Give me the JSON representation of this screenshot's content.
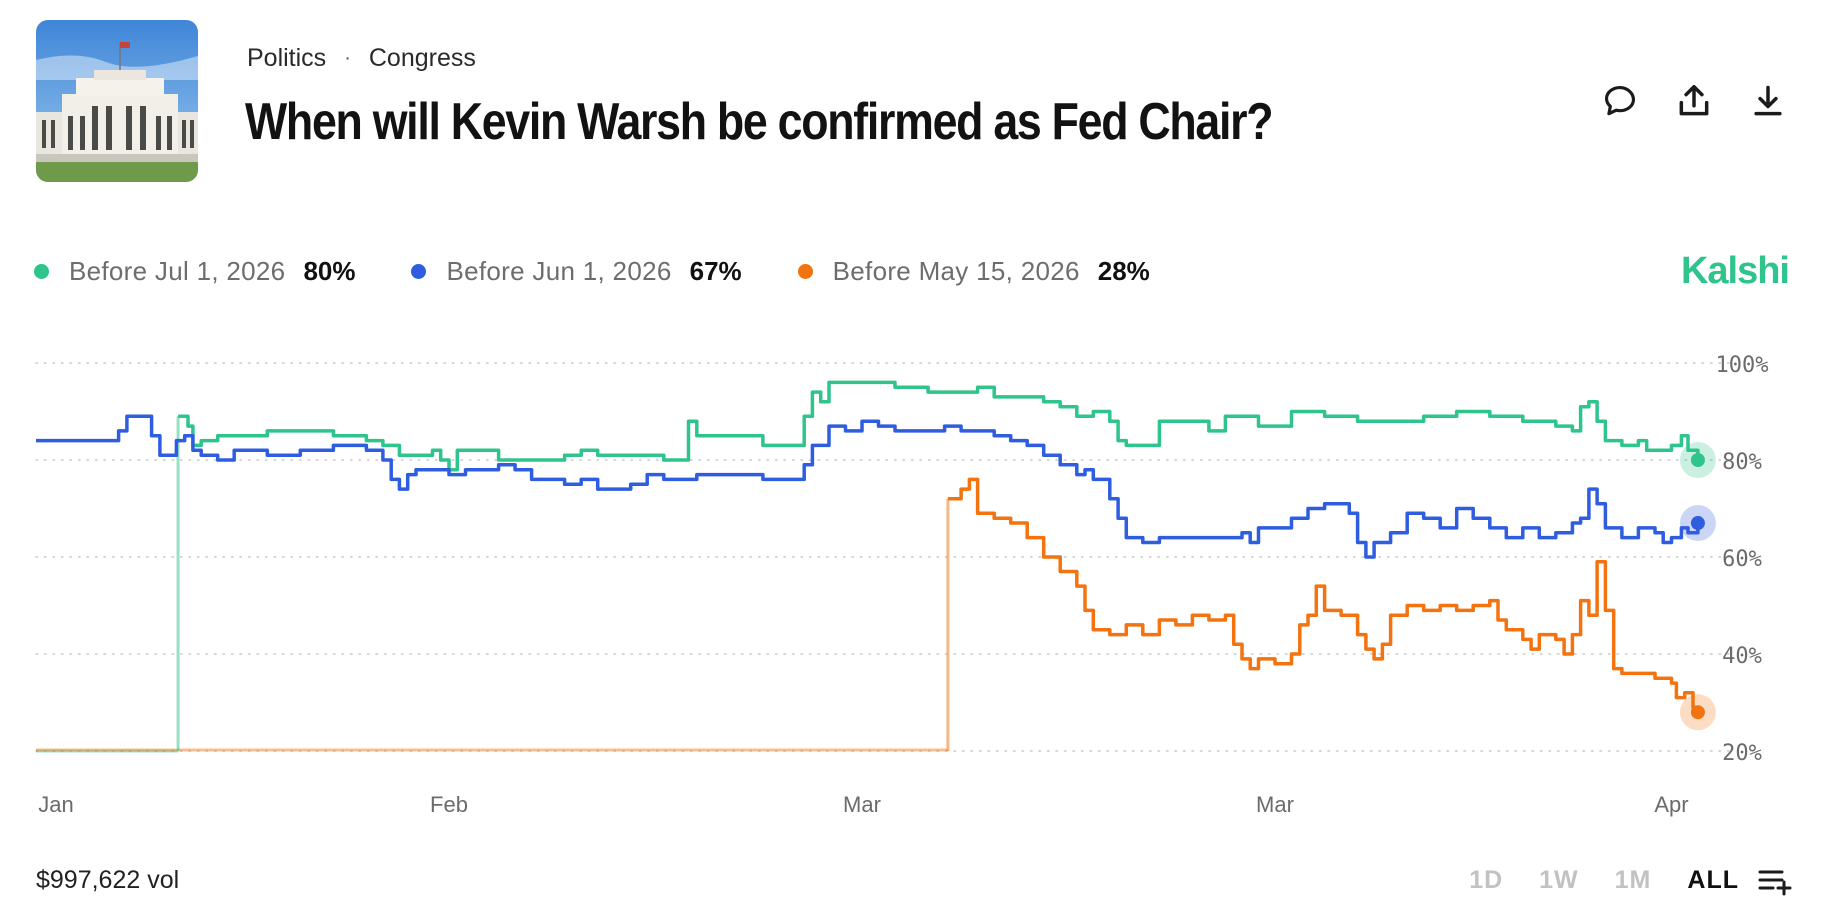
{
  "header": {
    "breadcrumb": [
      "Politics",
      "Congress"
    ],
    "separator": "·",
    "title": "When will Kevin Warsh be confirmed as Fed Chair?",
    "thumbnail": "federal-reserve-building-image"
  },
  "actions": [
    {
      "name": "comment-button",
      "icon": "comment-icon"
    },
    {
      "name": "share-button",
      "icon": "share-icon"
    },
    {
      "name": "download-button",
      "icon": "download-icon"
    }
  ],
  "brand": "Kalshi",
  "footer": {
    "volume": "$997,622 vol",
    "ranges": [
      "1D",
      "1W",
      "1M",
      "ALL"
    ],
    "active_range": "ALL",
    "list_icon": "add-list-icon"
  },
  "colors": {
    "green": "#2ec48c",
    "blue": "#2f5de0",
    "orange": "#f2730f",
    "brand": "#2ec48c"
  },
  "chart_data": {
    "type": "line",
    "title": "When will Kevin Warsh be confirmed as Fed Chair?",
    "xlabel": "",
    "ylabel": "",
    "x_range": [
      0,
      100
    ],
    "ylim": [
      20,
      100
    ],
    "y_ticks": [
      100,
      80,
      60,
      40,
      20
    ],
    "y_tick_labels": [
      "100%",
      "80%",
      "60%",
      "40%",
      "20%"
    ],
    "x_ticks": [
      {
        "label": "Jan",
        "pos": 0
      },
      {
        "label": "Feb",
        "pos": 25
      },
      {
        "label": "Mar",
        "pos": 50
      },
      {
        "label": "Mar",
        "pos": 75
      },
      {
        "label": "Apr",
        "pos": 99
      }
    ],
    "grid": true,
    "legend_position": "top-left",
    "series": [
      {
        "name": "Before Jul 1, 2026",
        "current": "80%",
        "color": "green",
        "start_x": 8.6,
        "points": [
          [
            8.6,
            20
          ],
          [
            8.6,
            89
          ],
          [
            9.2,
            87
          ],
          [
            9.5,
            83
          ],
          [
            10,
            84
          ],
          [
            11,
            85
          ],
          [
            12,
            85
          ],
          [
            14,
            86
          ],
          [
            16,
            86
          ],
          [
            18,
            85
          ],
          [
            20,
            84
          ],
          [
            21,
            83
          ],
          [
            22,
            81
          ],
          [
            23,
            81
          ],
          [
            24,
            82
          ],
          [
            24.5,
            80
          ],
          [
            25,
            78
          ],
          [
            25.5,
            82
          ],
          [
            27,
            82
          ],
          [
            28,
            80
          ],
          [
            30,
            80
          ],
          [
            32,
            81
          ],
          [
            33,
            82
          ],
          [
            34,
            81
          ],
          [
            36,
            81
          ],
          [
            38,
            80
          ],
          [
            39,
            80
          ],
          [
            39.5,
            88
          ],
          [
            40,
            85
          ],
          [
            42,
            85
          ],
          [
            44,
            83
          ],
          [
            46,
            83
          ],
          [
            46.5,
            89
          ],
          [
            47,
            94
          ],
          [
            47.5,
            92
          ],
          [
            48,
            96
          ],
          [
            50,
            96
          ],
          [
            52,
            95
          ],
          [
            54,
            94
          ],
          [
            56,
            94
          ],
          [
            57,
            95
          ],
          [
            58,
            93
          ],
          [
            60,
            93
          ],
          [
            61,
            92
          ],
          [
            62,
            91
          ],
          [
            63,
            89
          ],
          [
            64,
            90
          ],
          [
            65,
            88
          ],
          [
            65.5,
            84
          ],
          [
            66,
            83
          ],
          [
            67,
            83
          ],
          [
            68,
            88
          ],
          [
            70,
            88
          ],
          [
            71,
            86
          ],
          [
            72,
            89
          ],
          [
            74,
            87
          ],
          [
            76,
            90
          ],
          [
            78,
            89
          ],
          [
            80,
            88
          ],
          [
            82,
            88
          ],
          [
            84,
            89
          ],
          [
            86,
            90
          ],
          [
            88,
            89
          ],
          [
            90,
            88
          ],
          [
            92,
            87
          ],
          [
            93,
            86
          ],
          [
            93.5,
            91
          ],
          [
            94,
            92
          ],
          [
            94.5,
            88
          ],
          [
            95,
            84
          ],
          [
            96,
            83
          ],
          [
            97,
            84
          ],
          [
            97.5,
            82
          ],
          [
            98,
            82
          ],
          [
            99,
            83
          ],
          [
            99.6,
            85
          ],
          [
            100,
            82
          ],
          [
            100.6,
            80
          ]
        ]
      },
      {
        "name": "Before Jun 1, 2026",
        "current": "67%",
        "color": "blue",
        "start_x": 0,
        "points": [
          [
            0,
            84
          ],
          [
            4,
            84
          ],
          [
            5,
            86
          ],
          [
            5.5,
            89
          ],
          [
            6.5,
            89
          ],
          [
            7,
            85
          ],
          [
            7.5,
            81
          ],
          [
            8,
            81
          ],
          [
            8.5,
            84
          ],
          [
            9,
            85
          ],
          [
            9.5,
            82
          ],
          [
            10,
            81
          ],
          [
            11,
            80
          ],
          [
            12,
            82
          ],
          [
            13,
            82
          ],
          [
            14,
            81
          ],
          [
            16,
            82
          ],
          [
            18,
            83
          ],
          [
            20,
            82
          ],
          [
            21,
            80
          ],
          [
            21.5,
            76
          ],
          [
            22,
            74
          ],
          [
            22.5,
            77
          ],
          [
            23,
            78
          ],
          [
            24,
            78
          ],
          [
            25,
            77
          ],
          [
            26,
            78
          ],
          [
            28,
            79
          ],
          [
            29,
            78
          ],
          [
            30,
            76
          ],
          [
            31,
            76
          ],
          [
            32,
            75
          ],
          [
            33,
            76
          ],
          [
            34,
            74
          ],
          [
            36,
            75
          ],
          [
            37,
            77
          ],
          [
            38,
            76
          ],
          [
            40,
            77
          ],
          [
            42,
            77
          ],
          [
            44,
            76
          ],
          [
            45,
            76
          ],
          [
            46,
            76
          ],
          [
            46.5,
            79
          ],
          [
            47,
            83
          ],
          [
            48,
            87
          ],
          [
            49,
            86
          ],
          [
            50,
            88
          ],
          [
            51,
            87
          ],
          [
            52,
            86
          ],
          [
            54,
            86
          ],
          [
            55,
            87
          ],
          [
            56,
            86
          ],
          [
            58,
            85
          ],
          [
            59,
            84
          ],
          [
            60,
            83
          ],
          [
            61,
            81
          ],
          [
            62,
            79
          ],
          [
            63,
            77
          ],
          [
            63.5,
            78
          ],
          [
            64,
            76
          ],
          [
            65,
            72
          ],
          [
            65.5,
            68
          ],
          [
            66,
            64
          ],
          [
            67,
            63
          ],
          [
            68,
            64
          ],
          [
            70,
            64
          ],
          [
            72,
            64
          ],
          [
            73,
            65
          ],
          [
            73.5,
            63
          ],
          [
            74,
            66
          ],
          [
            76,
            68
          ],
          [
            77,
            70
          ],
          [
            78,
            71
          ],
          [
            79,
            71
          ],
          [
            79.5,
            69
          ],
          [
            80,
            63
          ],
          [
            80.5,
            60
          ],
          [
            81,
            63
          ],
          [
            82,
            65
          ],
          [
            83,
            69
          ],
          [
            84,
            68
          ],
          [
            85,
            66
          ],
          [
            86,
            70
          ],
          [
            87,
            68
          ],
          [
            88,
            66
          ],
          [
            89,
            64
          ],
          [
            90,
            66
          ],
          [
            91,
            64
          ],
          [
            92,
            65
          ],
          [
            93,
            67
          ],
          [
            93.5,
            68
          ],
          [
            94,
            74
          ],
          [
            94.5,
            71
          ],
          [
            95,
            66
          ],
          [
            96,
            64
          ],
          [
            97,
            66
          ],
          [
            98,
            65
          ],
          [
            98.5,
            63
          ],
          [
            99,
            64
          ],
          [
            99.6,
            66
          ],
          [
            100,
            65
          ],
          [
            100.6,
            67
          ]
        ]
      },
      {
        "name": "Before May 15, 2026",
        "current": "28%",
        "color": "orange",
        "start_x": 55.2,
        "points": [
          [
            55.2,
            20
          ],
          [
            55.2,
            72
          ],
          [
            56,
            74
          ],
          [
            56.5,
            76
          ],
          [
            57,
            69
          ],
          [
            58,
            68
          ],
          [
            59,
            67
          ],
          [
            60,
            64
          ],
          [
            61,
            60
          ],
          [
            62,
            57
          ],
          [
            63,
            54
          ],
          [
            63.5,
            49
          ],
          [
            64,
            45
          ],
          [
            65,
            44
          ],
          [
            66,
            46
          ],
          [
            67,
            44
          ],
          [
            68,
            47
          ],
          [
            69,
            46
          ],
          [
            70,
            48
          ],
          [
            71,
            47
          ],
          [
            72,
            48
          ],
          [
            72.5,
            42
          ],
          [
            73,
            39
          ],
          [
            73.5,
            37
          ],
          [
            74,
            39
          ],
          [
            75,
            38
          ],
          [
            76,
            40
          ],
          [
            76.5,
            46
          ],
          [
            77,
            48
          ],
          [
            77.5,
            54
          ],
          [
            78,
            49
          ],
          [
            79,
            48
          ],
          [
            80,
            44
          ],
          [
            80.5,
            41
          ],
          [
            81,
            39
          ],
          [
            81.5,
            42
          ],
          [
            82,
            48
          ],
          [
            83,
            50
          ],
          [
            84,
            49
          ],
          [
            85,
            50
          ],
          [
            86,
            49
          ],
          [
            87,
            50
          ],
          [
            88,
            51
          ],
          [
            88.5,
            47
          ],
          [
            89,
            45
          ],
          [
            90,
            43
          ],
          [
            90.5,
            41
          ],
          [
            91,
            44
          ],
          [
            92,
            43
          ],
          [
            92.5,
            40
          ],
          [
            93,
            44
          ],
          [
            93.5,
            51
          ],
          [
            94,
            48
          ],
          [
            94.5,
            59
          ],
          [
            95,
            49
          ],
          [
            95.5,
            37
          ],
          [
            96,
            36
          ],
          [
            97,
            36
          ],
          [
            98,
            35
          ],
          [
            99,
            34
          ],
          [
            99.3,
            31
          ],
          [
            99.8,
            32
          ],
          [
            100.3,
            29
          ],
          [
            100.6,
            28
          ]
        ]
      }
    ]
  }
}
